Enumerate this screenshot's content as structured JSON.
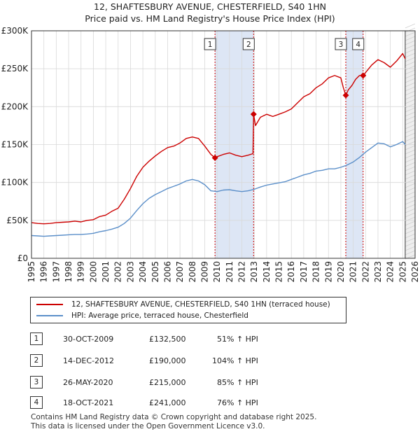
{
  "title": "12, SHAFTESBURY AVENUE, CHESTERFIELD, S40 1HN",
  "subtitle": "Price paid vs. HM Land Registry's House Price Index (HPI)",
  "colors": {
    "property": "#cc0000",
    "hpi": "#5b8fc9",
    "shade": "#dde6f5",
    "grid": "#d9d9d9"
  },
  "chart_data": {
    "type": "line",
    "title": "12, SHAFTESBURY AVENUE, CHESTERFIELD, S40 1HN",
    "xlabel": "",
    "ylabel": "",
    "xlim": [
      1995,
      2026
    ],
    "ylim": [
      0,
      300000
    ],
    "y_ticks": [
      0,
      50000,
      100000,
      150000,
      200000,
      250000,
      300000
    ],
    "y_tick_labels": [
      "£0",
      "£50K",
      "£100K",
      "£150K",
      "£200K",
      "£250K",
      "£300K"
    ],
    "x_ticks": [
      1995,
      1996,
      1997,
      1998,
      1999,
      2000,
      2001,
      2002,
      2003,
      2004,
      2005,
      2006,
      2007,
      2008,
      2009,
      2010,
      2011,
      2012,
      2013,
      2014,
      2015,
      2016,
      2017,
      2018,
      2019,
      2020,
      2021,
      2022,
      2023,
      2024,
      2025,
      2026
    ],
    "x_tick_labels": [
      "1995",
      "1996",
      "1997",
      "1998",
      "1999",
      "2000",
      "2001",
      "2002",
      "2003",
      "2004",
      "2005",
      "2006",
      "2007",
      "2008",
      "2009",
      "2010",
      "2011",
      "2012",
      "2013",
      "2014",
      "2015",
      "2016",
      "2017",
      "2018",
      "2019",
      "2020",
      "2021",
      "2022",
      "2023",
      "2024",
      "2025",
      "2026"
    ],
    "shaded_ranges": [
      [
        2009.83,
        2012.95
      ],
      [
        2020.4,
        2021.8
      ]
    ],
    "forecast_from": 2025.2,
    "series": [
      {
        "name": "12, SHAFTESBURY AVENUE, CHESTERFIELD, S40 1HN (terraced house)",
        "color": "#cc0000",
        "x": [
          1995,
          1995.5,
          1996,
          1996.5,
          1997,
          1997.5,
          1998,
          1998.5,
          1999,
          1999.5,
          2000,
          2000.5,
          2001,
          2001.5,
          2002,
          2002.5,
          2003,
          2003.5,
          2004,
          2004.5,
          2005,
          2005.5,
          2006,
          2006.5,
          2007,
          2007.5,
          2008,
          2008.5,
          2009,
          2009.5,
          2009.83,
          2010,
          2010.5,
          2011,
          2011.5,
          2012,
          2012.5,
          2012.9,
          2012.95,
          2013.1,
          2013.5,
          2014,
          2014.5,
          2015,
          2015.5,
          2016,
          2016.5,
          2017,
          2017.5,
          2018,
          2018.5,
          2019,
          2019.5,
          2020,
          2020.2,
          2020.4,
          2020.6,
          2020.9,
          2021.2,
          2021.5,
          2021.8,
          2022,
          2022.5,
          2023,
          2023.5,
          2024,
          2024.5,
          2025,
          2025.2
        ],
        "values": [
          47000,
          46000,
          45500,
          46000,
          47000,
          47500,
          48000,
          49000,
          48000,
          50000,
          51000,
          55000,
          57000,
          62000,
          66000,
          78000,
          92000,
          108000,
          120000,
          128000,
          135000,
          141000,
          146000,
          148000,
          152000,
          158000,
          160000,
          158000,
          148000,
          137000,
          132500,
          134000,
          137000,
          139000,
          136000,
          134000,
          136000,
          138000,
          190000,
          175000,
          186000,
          190000,
          187000,
          190000,
          193000,
          197000,
          205000,
          213000,
          217000,
          225000,
          230000,
          238000,
          241000,
          238000,
          225000,
          215000,
          222000,
          228000,
          236000,
          241000,
          241000,
          245000,
          255000,
          262000,
          258000,
          252000,
          260000,
          270000,
          263000
        ]
      },
      {
        "name": "HPI: Average price, terraced house, Chesterfield",
        "color": "#5b8fc9",
        "x": [
          1995,
          1995.5,
          1996,
          1996.5,
          1997,
          1997.5,
          1998,
          1998.5,
          1999,
          1999.5,
          2000,
          2000.5,
          2001,
          2001.5,
          2002,
          2002.5,
          2003,
          2003.5,
          2004,
          2004.5,
          2005,
          2005.5,
          2006,
          2006.5,
          2007,
          2007.5,
          2008,
          2008.5,
          2009,
          2009.5,
          2010,
          2010.5,
          2011,
          2011.5,
          2012,
          2012.5,
          2013,
          2013.5,
          2014,
          2014.5,
          2015,
          2015.5,
          2016,
          2016.5,
          2017,
          2017.5,
          2018,
          2018.5,
          2019,
          2019.5,
          2020,
          2020.5,
          2021,
          2021.5,
          2022,
          2022.5,
          2023,
          2023.5,
          2024,
          2024.5,
          2025,
          2025.2
        ],
        "values": [
          30000,
          29500,
          29000,
          29500,
          30000,
          30500,
          31000,
          31500,
          31500,
          32000,
          33000,
          35000,
          36500,
          38500,
          41000,
          46000,
          53000,
          63000,
          72000,
          79000,
          84000,
          88000,
          92000,
          95000,
          98000,
          102000,
          104000,
          102000,
          97000,
          89000,
          88000,
          90000,
          90500,
          89000,
          88000,
          89000,
          91000,
          94000,
          96500,
          98000,
          99500,
          101000,
          104000,
          107000,
          110000,
          112000,
          115000,
          116000,
          118000,
          118000,
          120000,
          123000,
          127000,
          133000,
          140000,
          146000,
          152000,
          151000,
          147000,
          150000,
          154000,
          150000
        ]
      }
    ],
    "sales": [
      {
        "label": "1",
        "x": 2009.83,
        "value": 132500
      },
      {
        "label": "2",
        "x": 2012.95,
        "value": 190000
      },
      {
        "label": "3",
        "x": 2020.4,
        "value": 215000
      },
      {
        "label": "4",
        "x": 2021.8,
        "value": 241000
      }
    ]
  },
  "legend": {
    "property_label": "12, SHAFTESBURY AVENUE, CHESTERFIELD, S40 1HN (terraced house)",
    "hpi_label": "HPI: Average price, terraced house, Chesterfield"
  },
  "transactions": [
    {
      "num": "1",
      "date": "30-OCT-2009",
      "price": "£132,500",
      "hpi": "51% ↑ HPI"
    },
    {
      "num": "2",
      "date": "14-DEC-2012",
      "price": "£190,000",
      "hpi": "104% ↑ HPI"
    },
    {
      "num": "3",
      "date": "26-MAY-2020",
      "price": "£215,000",
      "hpi": "85% ↑ HPI"
    },
    {
      "num": "4",
      "date": "18-OCT-2021",
      "price": "£241,000",
      "hpi": "76% ↑ HPI"
    }
  ],
  "footer": {
    "line1": "Contains HM Land Registry data © Crown copyright and database right 2025.",
    "line2": "This data is licensed under the Open Government Licence v3.0."
  }
}
